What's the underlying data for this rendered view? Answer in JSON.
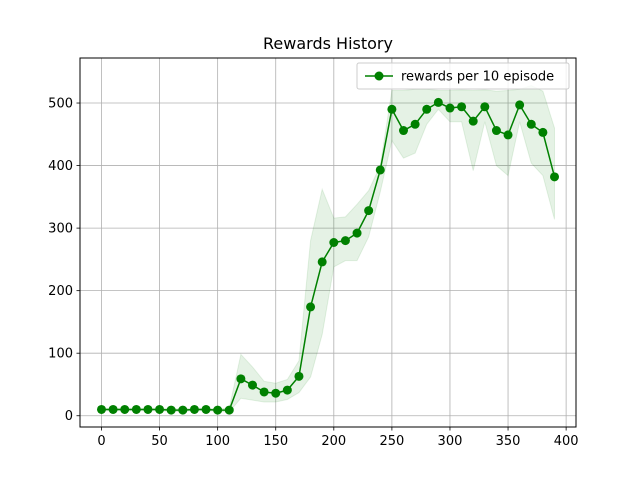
{
  "chart_data": {
    "type": "line",
    "title": "Rewards History",
    "xlabel": "",
    "ylabel": "",
    "xlim": [
      -18.5,
      408.5
    ],
    "ylim": [
      -18,
      572
    ],
    "xticks": [
      0,
      50,
      100,
      150,
      200,
      250,
      300,
      350,
      400
    ],
    "yticks": [
      0,
      100,
      200,
      300,
      400,
      500
    ],
    "grid": true,
    "legend_position": "top-right",
    "series": [
      {
        "name": "rewards per 10 episode",
        "color": "#008000",
        "band_color": "#008000",
        "x": [
          0,
          10,
          20,
          30,
          40,
          50,
          60,
          70,
          80,
          90,
          100,
          110,
          120,
          130,
          140,
          150,
          160,
          170,
          180,
          190,
          200,
          210,
          220,
          230,
          240,
          250,
          260,
          270,
          280,
          290,
          300,
          310,
          320,
          330,
          340,
          350,
          360,
          370,
          380,
          390
        ],
        "y": [
          10,
          10,
          10,
          10,
          10,
          10,
          9,
          9,
          10,
          10,
          9,
          9,
          59,
          49,
          38,
          36,
          41,
          63,
          174,
          246,
          277,
          280,
          292,
          328,
          393,
          490,
          456,
          466,
          490,
          501,
          492,
          494,
          471,
          494,
          456,
          449,
          497,
          466,
          453,
          382
        ],
        "upper": [
          12,
          12,
          12,
          12,
          12,
          12,
          11,
          11,
          12,
          12,
          11,
          12,
          98,
          78,
          55,
          52,
          58,
          88,
          280,
          362,
          316,
          318,
          338,
          360,
          400,
          520,
          520,
          522,
          522,
          520,
          520,
          521,
          520,
          521,
          519,
          520,
          522,
          528,
          519,
          460
        ],
        "lower": [
          8,
          8,
          8,
          8,
          8,
          8,
          7,
          7,
          8,
          8,
          7,
          6,
          28,
          25,
          22,
          22,
          26,
          37,
          62,
          130,
          238,
          248,
          248,
          286,
          358,
          440,
          412,
          420,
          466,
          490,
          470,
          470,
          392,
          470,
          400,
          384,
          470,
          404,
          384,
          314
        ]
      }
    ]
  }
}
